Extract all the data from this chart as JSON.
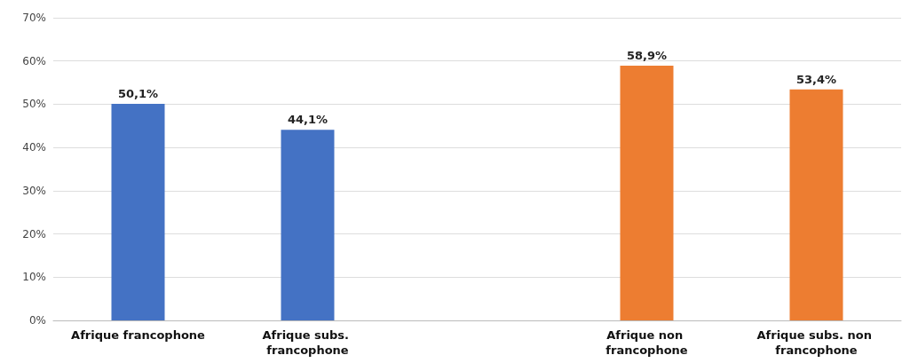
{
  "chart_data": {
    "type": "bar",
    "categories": [
      "Afrique francophone",
      "Afrique subs. francophone",
      null,
      "Afrique non francophone",
      "Afrique subs. non francophone"
    ],
    "values": [
      50.1,
      44.1,
      null,
      58.9,
      53.4
    ],
    "colors": [
      "#4472c4",
      "#4472c4",
      null,
      "#ed7d31",
      "#ed7d31"
    ],
    "value_labels": [
      "50,1%",
      "44,1%",
      null,
      "58,9%",
      "53,4%"
    ],
    "ylim": [
      0,
      70
    ],
    "yticks": [
      {
        "value": 0,
        "label": "0%"
      },
      {
        "value": 10,
        "label": "10%"
      },
      {
        "value": 20,
        "label": "20%"
      },
      {
        "value": 30,
        "label": "30%"
      },
      {
        "value": 40,
        "label": "40%"
      },
      {
        "value": 50,
        "label": "50%"
      },
      {
        "value": 60,
        "label": "60%"
      },
      {
        "value": 70,
        "label": "70%"
      }
    ],
    "grid": "y"
  }
}
